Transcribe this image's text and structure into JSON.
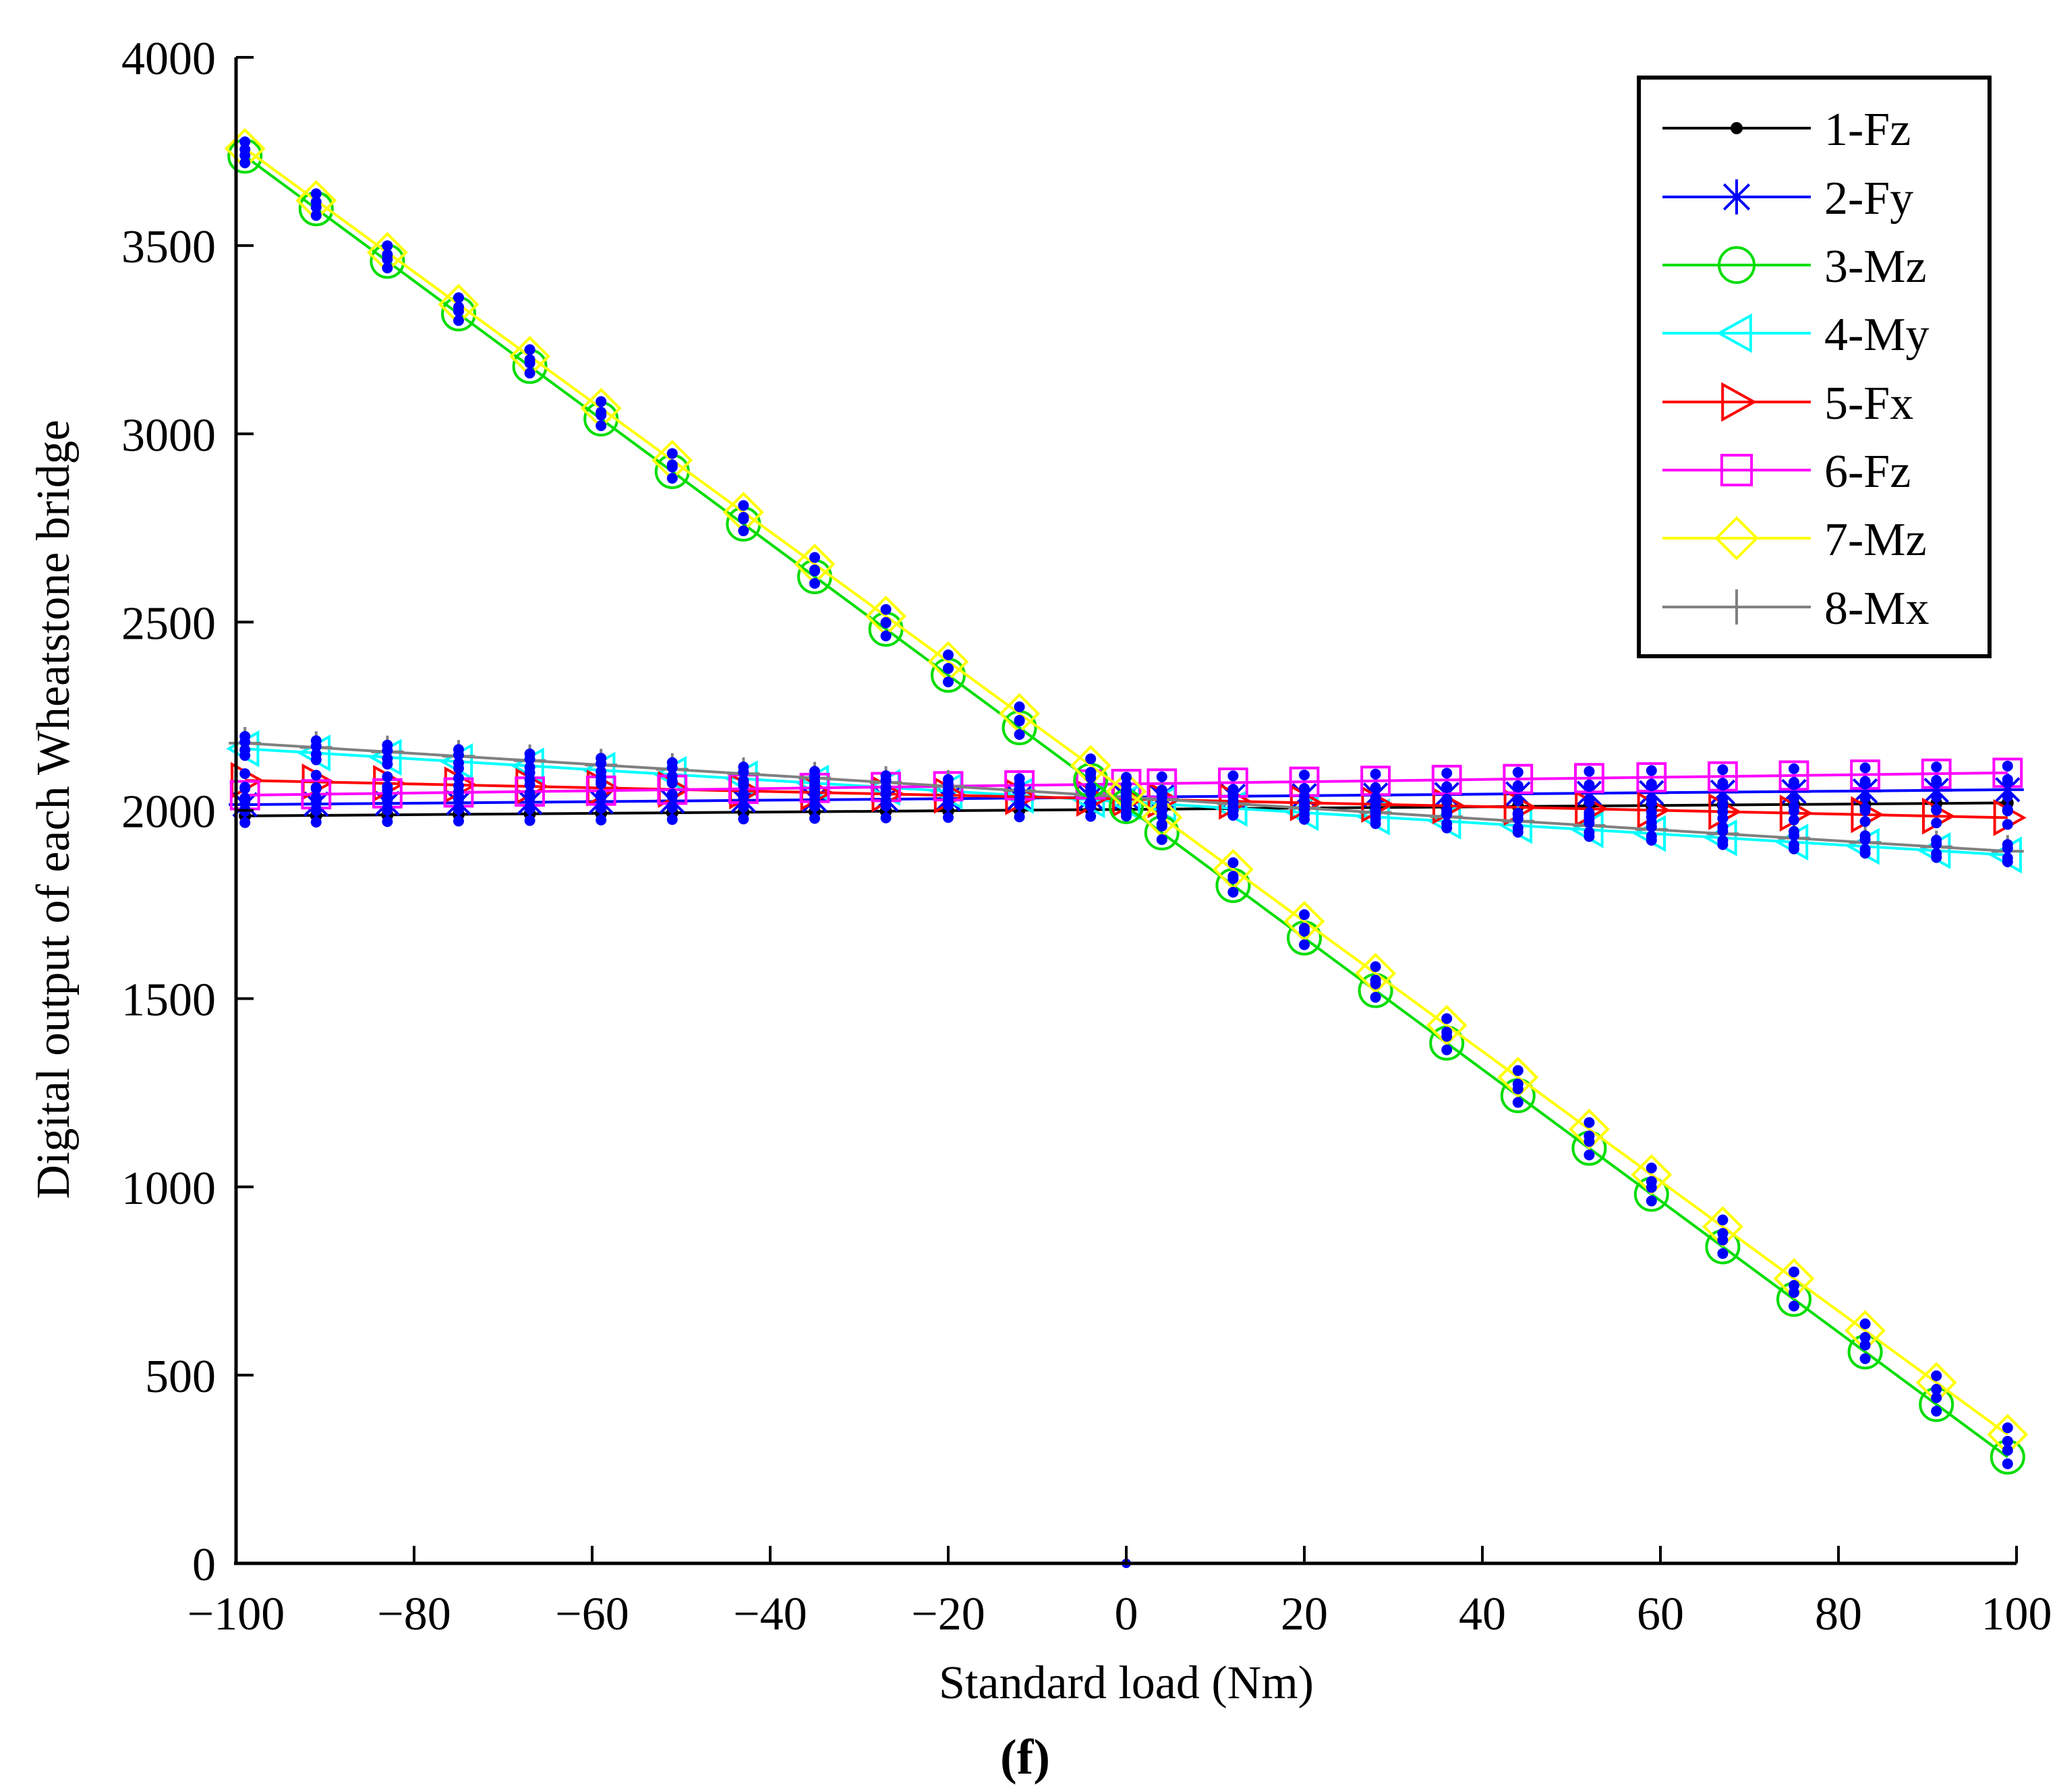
{
  "chart_data": {
    "type": "line",
    "title": "",
    "panel_label": "(f)",
    "xlabel": "Standard load (Nm)",
    "ylabel": "Digital output of each Wheatstone bridge",
    "xlim": [
      -100,
      100
    ],
    "ylim": [
      0,
      4000
    ],
    "xticks": [
      -100,
      -80,
      -60,
      -40,
      -20,
      0,
      20,
      40,
      60,
      80,
      100
    ],
    "yticks": [
      0,
      500,
      1000,
      1500,
      2000,
      2500,
      3000,
      3500,
      4000
    ],
    "xtick_labels": [
      "−100",
      "−80",
      "−60",
      "−40",
      "−20",
      "0",
      "20",
      "40",
      "60",
      "80",
      "100"
    ],
    "ytick_labels": [
      "0",
      "500",
      "1000",
      "1500",
      "2000",
      "2500",
      "3000",
      "3500",
      "4000"
    ],
    "grid": false,
    "legend_position": "top-right",
    "x": [
      -99,
      -91,
      -83,
      -75,
      -67,
      -59,
      -51,
      -43,
      -35,
      -27,
      -20,
      -12,
      -4,
      0,
      4,
      12,
      20,
      28,
      36,
      44,
      52,
      59,
      67,
      75,
      83,
      91,
      99
    ],
    "series": [
      {
        "name": "1-Fz",
        "color": "#000000",
        "marker": "dot",
        "start": 1985,
        "end": 2020
      },
      {
        "name": "2-Fy",
        "color": "#0000ff",
        "marker": "star",
        "start": 2015,
        "end": 2055
      },
      {
        "name": "3-Mz",
        "color": "#00dd00",
        "marker": "circle",
        "start": 3755,
        "end": 265
      },
      {
        "name": "4-My",
        "color": "#00ffff",
        "marker": "triangle-left",
        "start": 2165,
        "end": 1880
      },
      {
        "name": "5-Fx",
        "color": "#ff0000",
        "marker": "triangle-right",
        "start": 2080,
        "end": 1980
      },
      {
        "name": "6-Fz",
        "color": "#ff00ff",
        "marker": "square",
        "start": 2040,
        "end": 2100
      },
      {
        "name": "7-Mz",
        "color": "#ffff00",
        "marker": "diamond",
        "start": 3775,
        "end": 325
      },
      {
        "name": "8-Mx",
        "color": "#808080",
        "marker": "plus",
        "start": 2180,
        "end": 1890
      }
    ],
    "sample_color": "#0000ff"
  }
}
